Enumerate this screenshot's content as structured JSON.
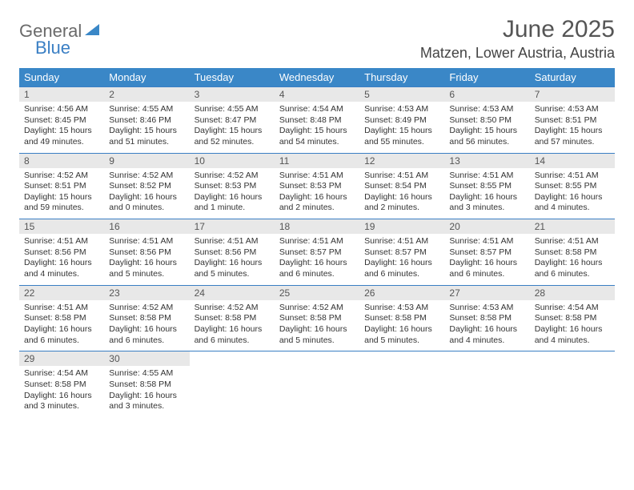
{
  "logo": {
    "text1": "General",
    "text2": "Blue",
    "icon_color": "#3a87c7"
  },
  "title": "June 2025",
  "location": "Matzen, Lower Austria, Austria",
  "colors": {
    "header_bg": "#3a87c7",
    "header_text": "#ffffff",
    "daynum_bg": "#e8e8e8",
    "border": "#3a7fc4",
    "text": "#333333",
    "title_text": "#555555"
  },
  "weekdays": [
    "Sunday",
    "Monday",
    "Tuesday",
    "Wednesday",
    "Thursday",
    "Friday",
    "Saturday"
  ],
  "weeks": [
    [
      {
        "n": "1",
        "sr": "4:56 AM",
        "ss": "8:45 PM",
        "dl": "15 hours and 49 minutes."
      },
      {
        "n": "2",
        "sr": "4:55 AM",
        "ss": "8:46 PM",
        "dl": "15 hours and 51 minutes."
      },
      {
        "n": "3",
        "sr": "4:55 AM",
        "ss": "8:47 PM",
        "dl": "15 hours and 52 minutes."
      },
      {
        "n": "4",
        "sr": "4:54 AM",
        "ss": "8:48 PM",
        "dl": "15 hours and 54 minutes."
      },
      {
        "n": "5",
        "sr": "4:53 AM",
        "ss": "8:49 PM",
        "dl": "15 hours and 55 minutes."
      },
      {
        "n": "6",
        "sr": "4:53 AM",
        "ss": "8:50 PM",
        "dl": "15 hours and 56 minutes."
      },
      {
        "n": "7",
        "sr": "4:53 AM",
        "ss": "8:51 PM",
        "dl": "15 hours and 57 minutes."
      }
    ],
    [
      {
        "n": "8",
        "sr": "4:52 AM",
        "ss": "8:51 PM",
        "dl": "15 hours and 59 minutes."
      },
      {
        "n": "9",
        "sr": "4:52 AM",
        "ss": "8:52 PM",
        "dl": "16 hours and 0 minutes."
      },
      {
        "n": "10",
        "sr": "4:52 AM",
        "ss": "8:53 PM",
        "dl": "16 hours and 1 minute."
      },
      {
        "n": "11",
        "sr": "4:51 AM",
        "ss": "8:53 PM",
        "dl": "16 hours and 2 minutes."
      },
      {
        "n": "12",
        "sr": "4:51 AM",
        "ss": "8:54 PM",
        "dl": "16 hours and 2 minutes."
      },
      {
        "n": "13",
        "sr": "4:51 AM",
        "ss": "8:55 PM",
        "dl": "16 hours and 3 minutes."
      },
      {
        "n": "14",
        "sr": "4:51 AM",
        "ss": "8:55 PM",
        "dl": "16 hours and 4 minutes."
      }
    ],
    [
      {
        "n": "15",
        "sr": "4:51 AM",
        "ss": "8:56 PM",
        "dl": "16 hours and 4 minutes."
      },
      {
        "n": "16",
        "sr": "4:51 AM",
        "ss": "8:56 PM",
        "dl": "16 hours and 5 minutes."
      },
      {
        "n": "17",
        "sr": "4:51 AM",
        "ss": "8:56 PM",
        "dl": "16 hours and 5 minutes."
      },
      {
        "n": "18",
        "sr": "4:51 AM",
        "ss": "8:57 PM",
        "dl": "16 hours and 6 minutes."
      },
      {
        "n": "19",
        "sr": "4:51 AM",
        "ss": "8:57 PM",
        "dl": "16 hours and 6 minutes."
      },
      {
        "n": "20",
        "sr": "4:51 AM",
        "ss": "8:57 PM",
        "dl": "16 hours and 6 minutes."
      },
      {
        "n": "21",
        "sr": "4:51 AM",
        "ss": "8:58 PM",
        "dl": "16 hours and 6 minutes."
      }
    ],
    [
      {
        "n": "22",
        "sr": "4:51 AM",
        "ss": "8:58 PM",
        "dl": "16 hours and 6 minutes."
      },
      {
        "n": "23",
        "sr": "4:52 AM",
        "ss": "8:58 PM",
        "dl": "16 hours and 6 minutes."
      },
      {
        "n": "24",
        "sr": "4:52 AM",
        "ss": "8:58 PM",
        "dl": "16 hours and 6 minutes."
      },
      {
        "n": "25",
        "sr": "4:52 AM",
        "ss": "8:58 PM",
        "dl": "16 hours and 5 minutes."
      },
      {
        "n": "26",
        "sr": "4:53 AM",
        "ss": "8:58 PM",
        "dl": "16 hours and 5 minutes."
      },
      {
        "n": "27",
        "sr": "4:53 AM",
        "ss": "8:58 PM",
        "dl": "16 hours and 4 minutes."
      },
      {
        "n": "28",
        "sr": "4:54 AM",
        "ss": "8:58 PM",
        "dl": "16 hours and 4 minutes."
      }
    ],
    [
      {
        "n": "29",
        "sr": "4:54 AM",
        "ss": "8:58 PM",
        "dl": "16 hours and 3 minutes."
      },
      {
        "n": "30",
        "sr": "4:55 AM",
        "ss": "8:58 PM",
        "dl": "16 hours and 3 minutes."
      },
      null,
      null,
      null,
      null,
      null
    ]
  ],
  "labels": {
    "sunrise": "Sunrise:",
    "sunset": "Sunset:",
    "daylight": "Daylight:"
  }
}
